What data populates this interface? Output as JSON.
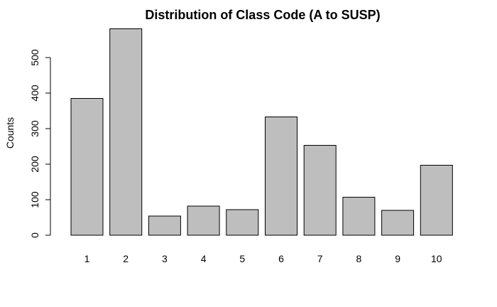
{
  "chart_data": {
    "type": "bar",
    "title": "Distribution of Class Code (A to SUSP)",
    "xlabel": "",
    "ylabel": "Counts",
    "categories": [
      "1",
      "2",
      "3",
      "4",
      "5",
      "6",
      "7",
      "8",
      "9",
      "10"
    ],
    "values": [
      385,
      581,
      54,
      82,
      72,
      333,
      253,
      107,
      70,
      197
    ],
    "ylim": [
      0,
      590
    ],
    "yticks": [
      0,
      100,
      200,
      300,
      400,
      500
    ],
    "grid": false,
    "legend": "none",
    "colors": {
      "bar_fill": "#bebebe",
      "bar_stroke": "#000000"
    }
  }
}
